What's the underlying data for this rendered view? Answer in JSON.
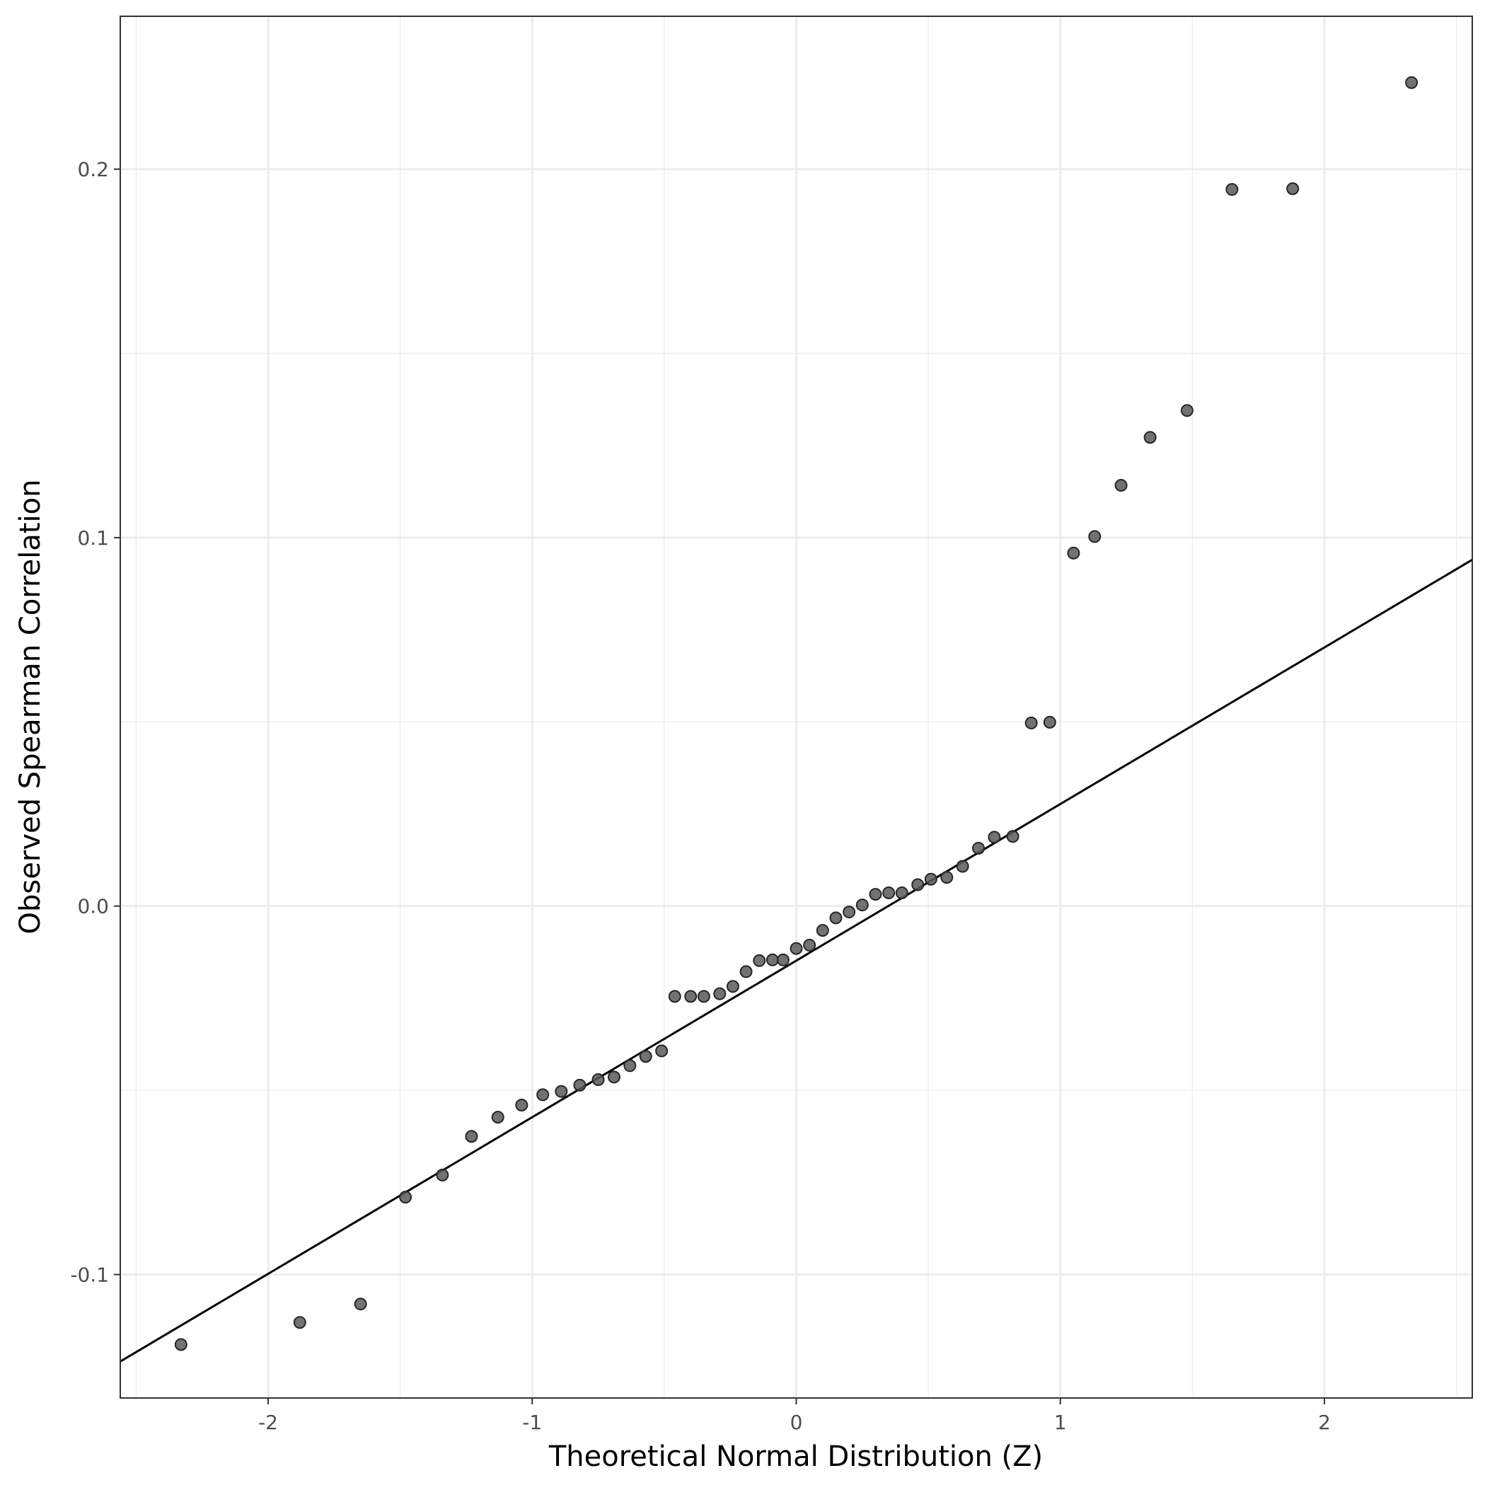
{
  "chart_data": {
    "type": "scatter",
    "title": "",
    "xlabel": "Theoretical Normal Distribution (Z)",
    "ylabel": "Observed Spearman Correlation",
    "xlim": [
      -2.56,
      2.56
    ],
    "ylim": [
      -0.1335,
      0.2415
    ],
    "x_ticks": [
      -2,
      -1,
      0,
      1,
      2
    ],
    "x_tick_labels": [
      "-2",
      "-1",
      "0",
      "1",
      "2"
    ],
    "y_ticks": [
      -0.1,
      0.0,
      0.1,
      0.2
    ],
    "y_tick_labels": [
      "-0.1",
      "0.0",
      "0.1",
      "0.2"
    ],
    "grid": true,
    "legend": "none",
    "point_color": "#595959",
    "line_color": "#000000",
    "reference_line": {
      "intercept": -0.0148,
      "slope": 0.0425
    },
    "points": [
      [
        -2.33,
        -0.119
      ],
      [
        -1.88,
        -0.113
      ],
      [
        -1.65,
        -0.108
      ],
      [
        -1.48,
        -0.079
      ],
      [
        -1.34,
        -0.073
      ],
      [
        -1.23,
        -0.0625
      ],
      [
        -1.13,
        -0.0573
      ],
      [
        -1.04,
        -0.054
      ],
      [
        -0.96,
        -0.0512
      ],
      [
        -0.89,
        -0.0503
      ],
      [
        -0.82,
        -0.0486
      ],
      [
        -0.75,
        -0.0471
      ],
      [
        -0.69,
        -0.0464
      ],
      [
        -0.63,
        -0.0433
      ],
      [
        -0.57,
        -0.0408
      ],
      [
        -0.51,
        -0.0393
      ],
      [
        -0.46,
        -0.0245
      ],
      [
        -0.4,
        -0.0245
      ],
      [
        -0.35,
        -0.0245
      ],
      [
        -0.29,
        -0.0238
      ],
      [
        -0.24,
        -0.0218
      ],
      [
        -0.19,
        -0.0178
      ],
      [
        -0.14,
        -0.0148
      ],
      [
        -0.09,
        -0.0146
      ],
      [
        -0.05,
        -0.0146
      ],
      [
        0.0,
        -0.0115
      ],
      [
        0.05,
        -0.0106
      ],
      [
        0.1,
        -0.0066
      ],
      [
        0.15,
        -0.0032
      ],
      [
        0.2,
        -0.0016
      ],
      [
        0.25,
        0.0003
      ],
      [
        0.3,
        0.0032
      ],
      [
        0.35,
        0.0036
      ],
      [
        0.4,
        0.0036
      ],
      [
        0.46,
        0.0058
      ],
      [
        0.51,
        0.0073
      ],
      [
        0.57,
        0.0078
      ],
      [
        0.63,
        0.0108
      ],
      [
        0.69,
        0.0157
      ],
      [
        0.75,
        0.0187
      ],
      [
        0.82,
        0.0189
      ],
      [
        0.89,
        0.0497
      ],
      [
        0.96,
        0.0499
      ],
      [
        1.05,
        0.0958
      ],
      [
        1.13,
        0.1003
      ],
      [
        1.23,
        0.1142
      ],
      [
        1.34,
        0.1272
      ],
      [
        1.48,
        0.1345
      ],
      [
        1.65,
        0.1945
      ],
      [
        1.88,
        0.1947
      ],
      [
        2.33,
        0.2235
      ]
    ]
  }
}
